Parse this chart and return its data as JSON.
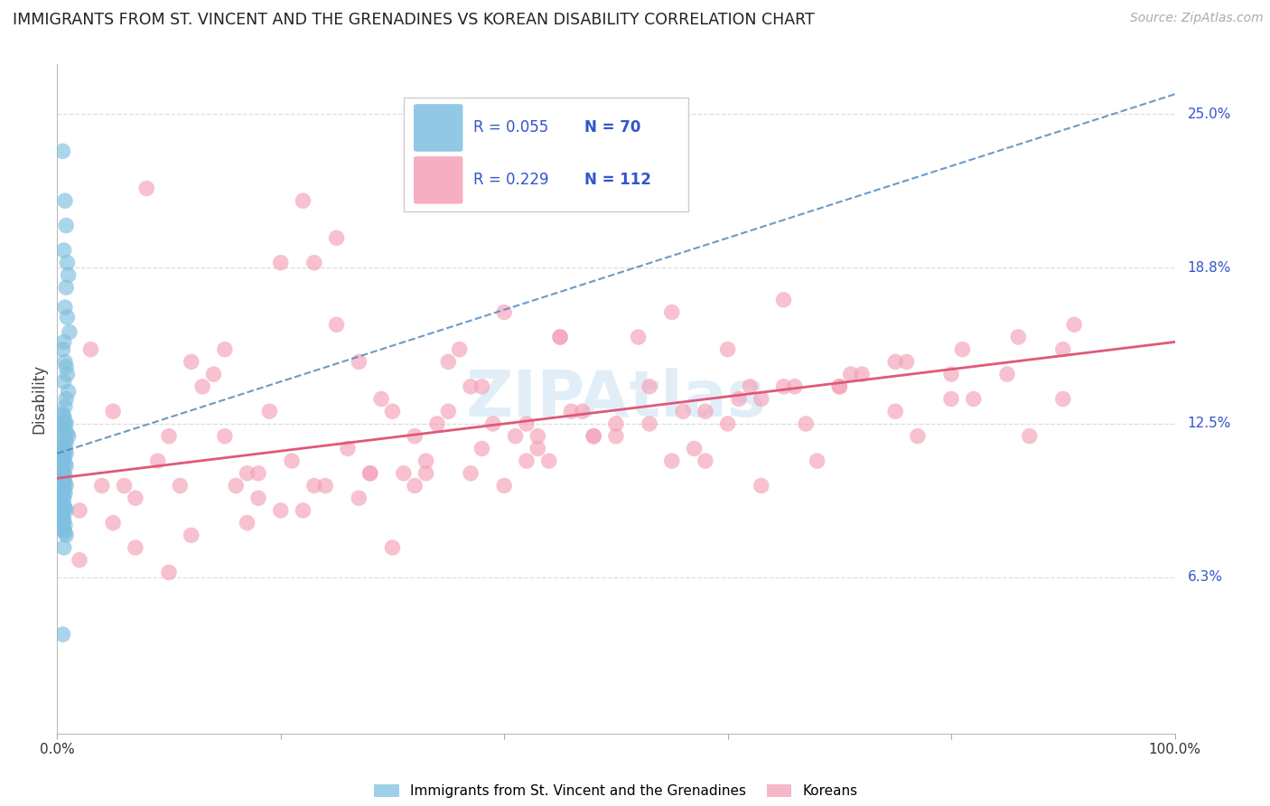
{
  "title": "IMMIGRANTS FROM ST. VINCENT AND THE GRENADINES VS KOREAN DISABILITY CORRELATION CHART",
  "source": "Source: ZipAtlas.com",
  "ylabel": "Disability",
  "yticks_labels": [
    "25.0%",
    "18.8%",
    "12.5%",
    "6.3%"
  ],
  "ytick_vals": [
    0.25,
    0.188,
    0.125,
    0.063
  ],
  "ylim": [
    0.0,
    0.27
  ],
  "xlim": [
    0.0,
    1.0
  ],
  "legend_blue_r": "R = 0.055",
  "legend_blue_n": "N = 70",
  "legend_pink_r": "R = 0.229",
  "legend_pink_n": "N = 112",
  "blue_color": "#7fbfdf",
  "pink_color": "#f4a0b8",
  "blue_line_color": "#5588bb",
  "pink_line_color": "#e05878",
  "text_color": "#3355cc",
  "title_color": "#222222",
  "source_color": "#aaaaaa",
  "watermark_color": "#c5dff0",
  "grid_color": "#dddddd",
  "background_color": "#ffffff",
  "blue_x": [
    0.005,
    0.007,
    0.008,
    0.006,
    0.009,
    0.01,
    0.008,
    0.007,
    0.009,
    0.011,
    0.006,
    0.005,
    0.007,
    0.008,
    0.009,
    0.006,
    0.01,
    0.008,
    0.007,
    0.005,
    0.006,
    0.007,
    0.008,
    0.006,
    0.005,
    0.007,
    0.009,
    0.01,
    0.006,
    0.007,
    0.008,
    0.005,
    0.006,
    0.007,
    0.008,
    0.005,
    0.006,
    0.005,
    0.007,
    0.008,
    0.004,
    0.005,
    0.006,
    0.007,
    0.005,
    0.006,
    0.007,
    0.008,
    0.005,
    0.006,
    0.007,
    0.005,
    0.006,
    0.004,
    0.005,
    0.006,
    0.007,
    0.008,
    0.005,
    0.004,
    0.005,
    0.006,
    0.005,
    0.007,
    0.005,
    0.006,
    0.007,
    0.008,
    0.006,
    0.005
  ],
  "blue_y": [
    0.235,
    0.215,
    0.205,
    0.195,
    0.19,
    0.185,
    0.18,
    0.172,
    0.168,
    0.162,
    0.158,
    0.155,
    0.15,
    0.148,
    0.145,
    0.142,
    0.138,
    0.135,
    0.132,
    0.129,
    0.128,
    0.126,
    0.125,
    0.124,
    0.123,
    0.122,
    0.121,
    0.12,
    0.119,
    0.118,
    0.117,
    0.116,
    0.115,
    0.114,
    0.113,
    0.112,
    0.111,
    0.11,
    0.109,
    0.108,
    0.107,
    0.106,
    0.105,
    0.104,
    0.103,
    0.102,
    0.101,
    0.1,
    0.099,
    0.098,
    0.097,
    0.096,
    0.095,
    0.094,
    0.093,
    0.092,
    0.091,
    0.09,
    0.089,
    0.088,
    0.087,
    0.086,
    0.085,
    0.084,
    0.083,
    0.082,
    0.081,
    0.08,
    0.075,
    0.04
  ],
  "pink_x": [
    0.03,
    0.05,
    0.08,
    0.12,
    0.15,
    0.18,
    0.2,
    0.22,
    0.25,
    0.28,
    0.3,
    0.32,
    0.35,
    0.38,
    0.4,
    0.42,
    0.45,
    0.1,
    0.13,
    0.16,
    0.19,
    0.23,
    0.26,
    0.29,
    0.33,
    0.36,
    0.39,
    0.43,
    0.06,
    0.09,
    0.11,
    0.14,
    0.17,
    0.21,
    0.24,
    0.27,
    0.31,
    0.34,
    0.37,
    0.41,
    0.44,
    0.07,
    0.5,
    0.55,
    0.6,
    0.65,
    0.7,
    0.75,
    0.8,
    0.48,
    0.53,
    0.58,
    0.63,
    0.68,
    0.46,
    0.52,
    0.57,
    0.62,
    0.67,
    0.72,
    0.77,
    0.82,
    0.87,
    0.9,
    0.04,
    0.02,
    0.15,
    0.25,
    0.35,
    0.45,
    0.55,
    0.65,
    0.75,
    0.85,
    0.4,
    0.5,
    0.6,
    0.7,
    0.8,
    0.9,
    0.2,
    0.3,
    0.1,
    0.47,
    0.43,
    0.38,
    0.33,
    0.28,
    0.23,
    0.18,
    0.56,
    0.61,
    0.66,
    0.71,
    0.76,
    0.81,
    0.86,
    0.91,
    0.05,
    0.42,
    0.37,
    0.32,
    0.27,
    0.22,
    0.17,
    0.12,
    0.07,
    0.02,
    0.48,
    0.53,
    0.58,
    0.63
  ],
  "pink_y": [
    0.155,
    0.13,
    0.22,
    0.15,
    0.12,
    0.105,
    0.19,
    0.215,
    0.2,
    0.105,
    0.13,
    0.12,
    0.13,
    0.14,
    0.17,
    0.125,
    0.16,
    0.12,
    0.14,
    0.1,
    0.13,
    0.19,
    0.115,
    0.135,
    0.105,
    0.155,
    0.125,
    0.115,
    0.1,
    0.11,
    0.1,
    0.145,
    0.105,
    0.11,
    0.1,
    0.15,
    0.105,
    0.125,
    0.14,
    0.12,
    0.11,
    0.095,
    0.125,
    0.11,
    0.155,
    0.14,
    0.14,
    0.13,
    0.135,
    0.12,
    0.14,
    0.11,
    0.1,
    0.11,
    0.13,
    0.16,
    0.115,
    0.14,
    0.125,
    0.145,
    0.12,
    0.135,
    0.12,
    0.135,
    0.1,
    0.09,
    0.155,
    0.165,
    0.15,
    0.16,
    0.17,
    0.175,
    0.15,
    0.145,
    0.1,
    0.12,
    0.125,
    0.14,
    0.145,
    0.155,
    0.09,
    0.075,
    0.065,
    0.13,
    0.12,
    0.115,
    0.11,
    0.105,
    0.1,
    0.095,
    0.13,
    0.135,
    0.14,
    0.145,
    0.15,
    0.155,
    0.16,
    0.165,
    0.085,
    0.11,
    0.105,
    0.1,
    0.095,
    0.09,
    0.085,
    0.08,
    0.075,
    0.07,
    0.12,
    0.125,
    0.13,
    0.135
  ],
  "blue_trend": [
    0.0,
    1.0,
    0.113,
    0.258
  ],
  "pink_trend": [
    0.0,
    1.0,
    0.103,
    0.158
  ]
}
